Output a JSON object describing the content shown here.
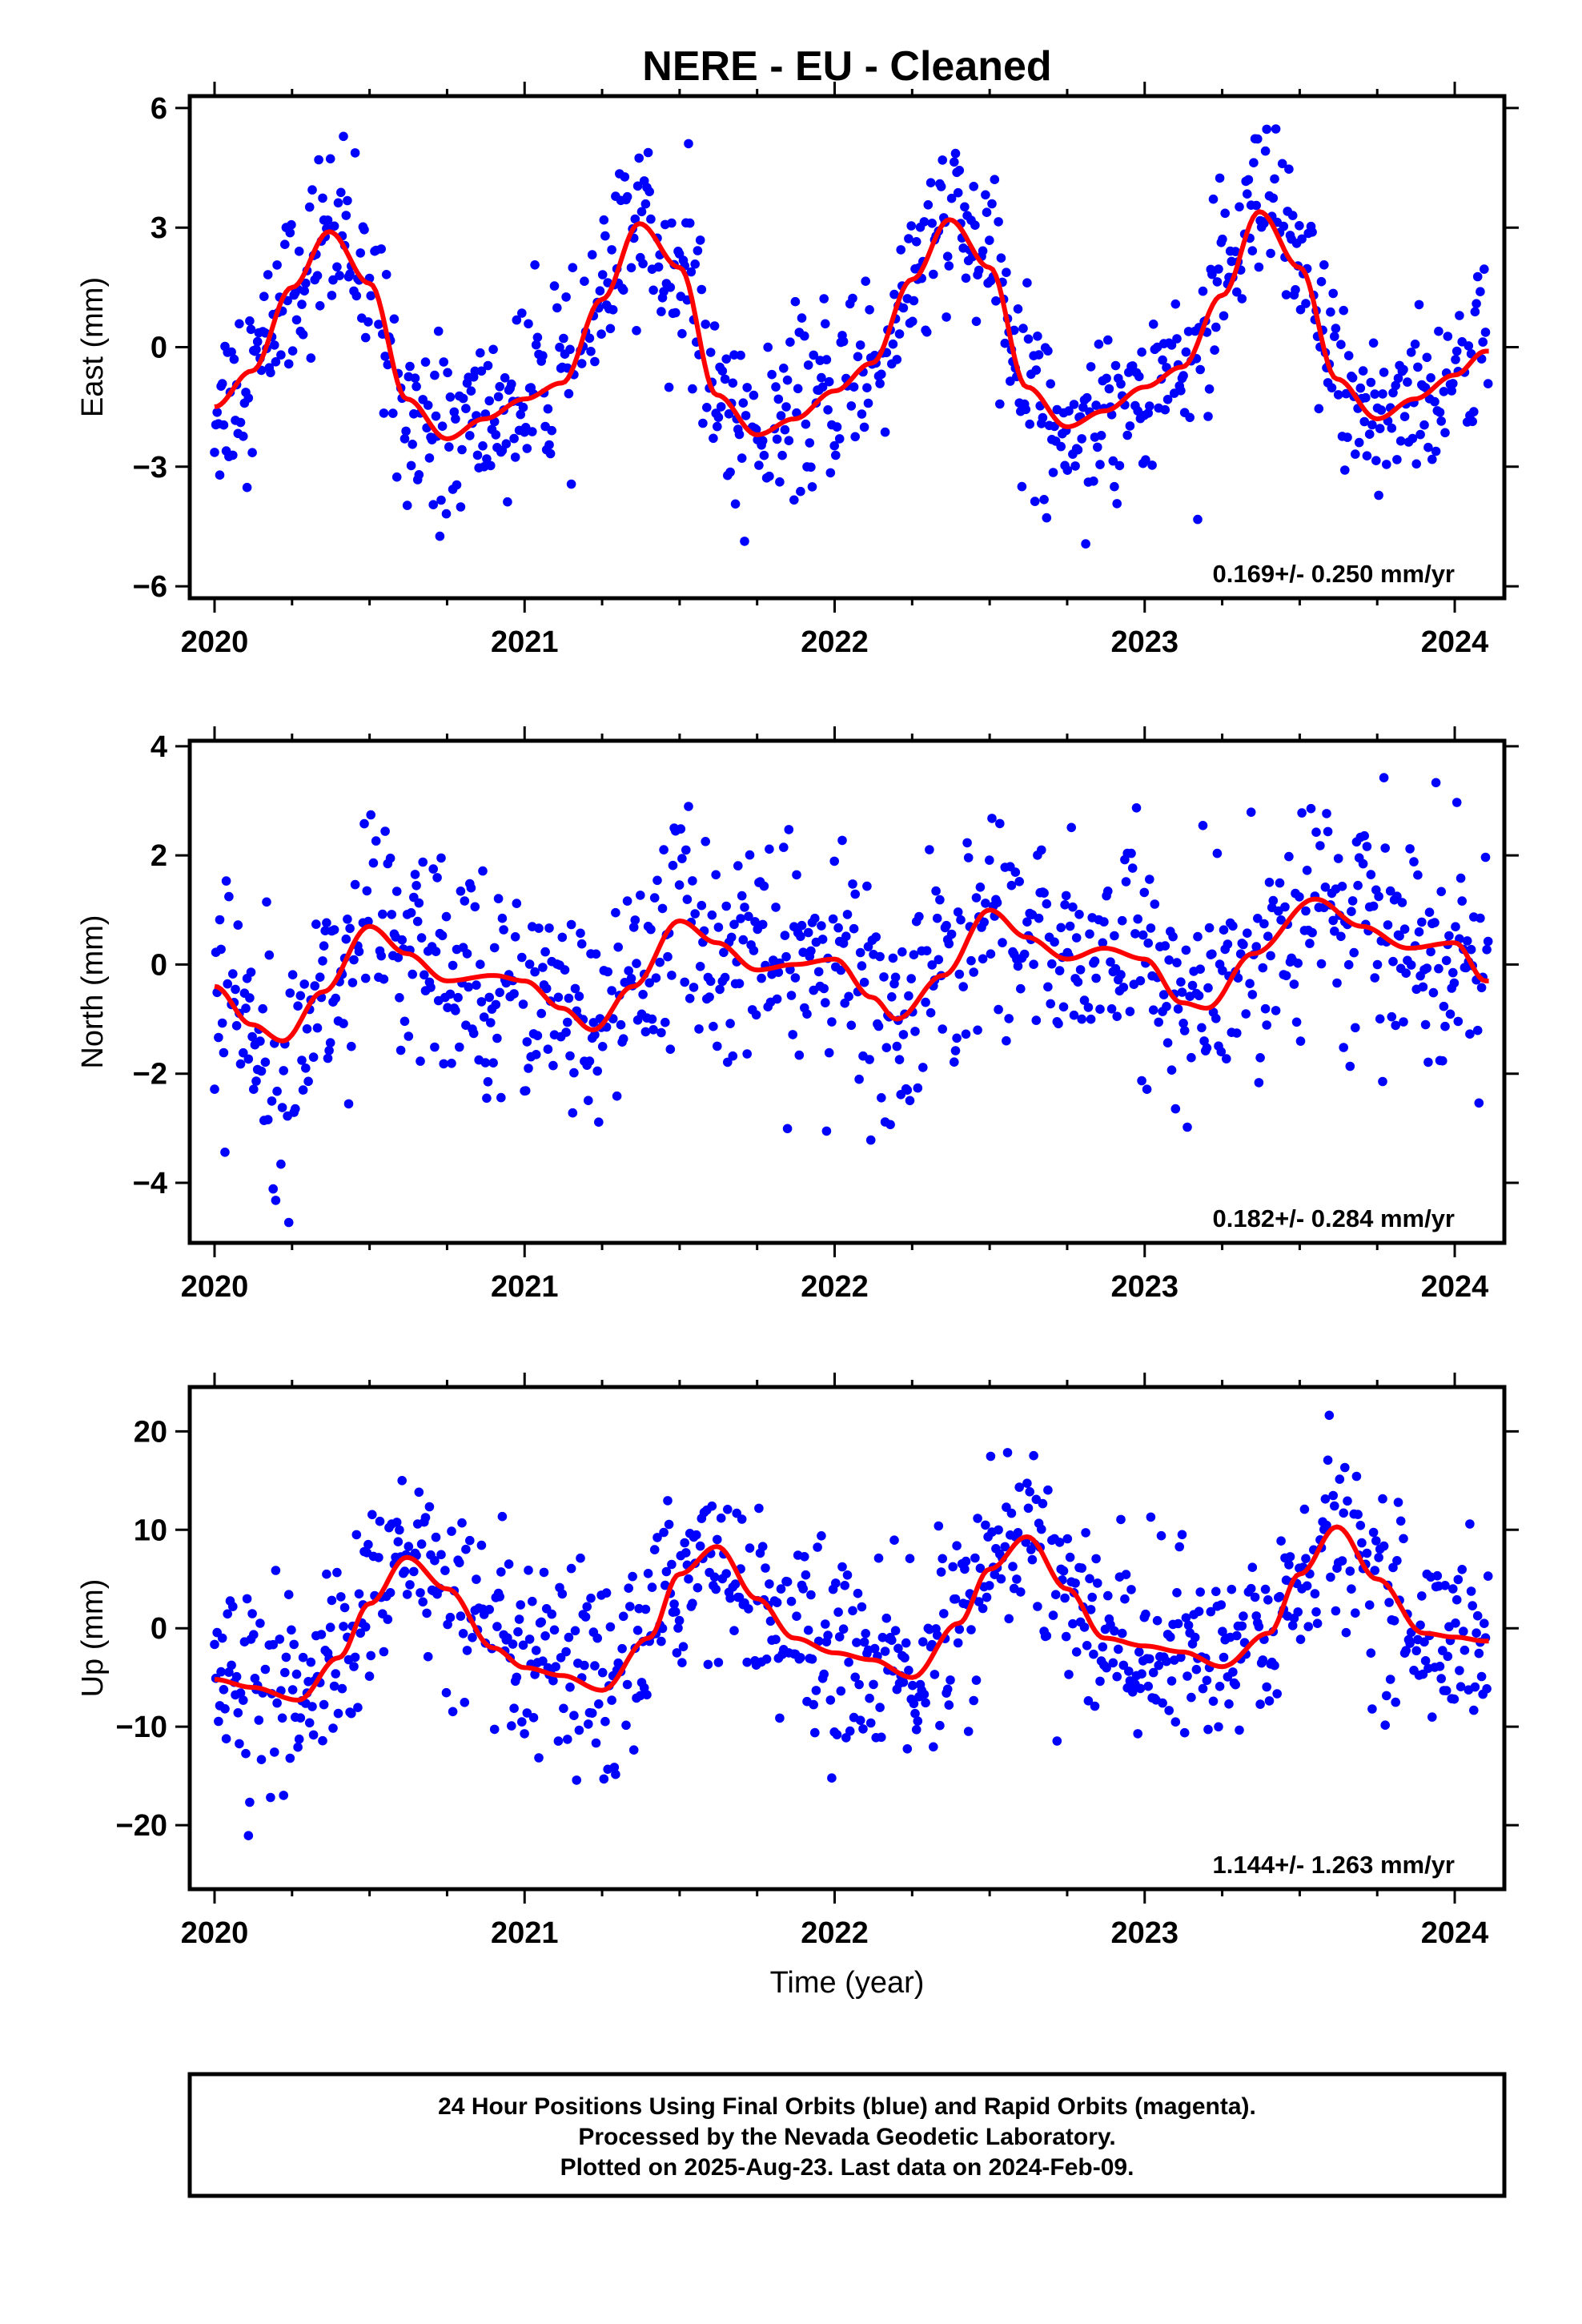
{
  "title": "NERE  - EU - Cleaned",
  "xlabel": "Time (year)",
  "footer": {
    "line1": "24 Hour Positions Using Final Orbits (blue) and Rapid Orbits (magenta).",
    "line2": "Processed by the Nevada Geodetic Laboratory.",
    "line3": "Plotted on 2025-Aug-23. Last data on 2024-Feb-09."
  },
  "colors": {
    "points": "#0000ff",
    "fit": "#ff0000",
    "frame": "#000000"
  },
  "chart_data": [
    {
      "type": "scatter",
      "ylabel": "East (mm)",
      "rate": "0.169+/- 0.250 mm/yr",
      "xlim": [
        2019.92,
        2024.16
      ],
      "ylim": [
        -6.3,
        6.3
      ],
      "xticks": [
        2020,
        2021,
        2022,
        2023,
        2024
      ],
      "yticks": [
        -6,
        -3,
        0,
        3,
        6
      ],
      "yticklabels": [
        "−6",
        "−3",
        "0",
        "3",
        "6"
      ],
      "series": [
        {
          "x": [
            2020.0,
            2020.12,
            2020.25,
            2020.37,
            2020.5,
            2020.62,
            2020.75,
            2020.87,
            2021.0,
            2021.12,
            2021.25,
            2021.37,
            2021.5,
            2021.62,
            2021.75,
            2021.87,
            2022.0,
            2022.12,
            2022.25,
            2022.37,
            2022.5,
            2022.62,
            2022.75,
            2022.87,
            2023.0,
            2023.12,
            2023.25,
            2023.37,
            2023.5,
            2023.62,
            2023.75,
            2023.87,
            2024.0,
            2024.1
          ],
          "y": [
            -1.5,
            -0.6,
            1.5,
            2.9,
            1.6,
            -1.3,
            -2.3,
            -1.8,
            -1.3,
            -0.9,
            1.2,
            3.1,
            2.0,
            -1.2,
            -2.2,
            -1.8,
            -1.1,
            -0.4,
            1.7,
            3.2,
            2.0,
            -1.0,
            -2.0,
            -1.6,
            -1.0,
            -0.5,
            1.3,
            3.4,
            2.0,
            -0.8,
            -1.8,
            -1.3,
            -0.7,
            -0.1
          ]
        }
      ]
    },
    {
      "type": "scatter",
      "ylabel": "North (mm)",
      "rate": "0.182+/- 0.284 mm/yr",
      "xlim": [
        2019.92,
        2024.16
      ],
      "ylim": [
        -5.1,
        4.1
      ],
      "xticks": [
        2020,
        2021,
        2022,
        2023,
        2024
      ],
      "yticks": [
        -4,
        -2,
        0,
        2,
        4
      ],
      "yticklabels": [
        "−4",
        "−2",
        "0",
        "2",
        "4"
      ],
      "series": [
        {
          "x": [
            2020.0,
            2020.12,
            2020.22,
            2020.35,
            2020.5,
            2020.62,
            2020.75,
            2020.9,
            2021.0,
            2021.12,
            2021.22,
            2021.35,
            2021.5,
            2021.62,
            2021.75,
            2021.87,
            2022.0,
            2022.12,
            2022.2,
            2022.35,
            2022.5,
            2022.62,
            2022.75,
            2022.87,
            2023.0,
            2023.12,
            2023.2,
            2023.35,
            2023.55,
            2023.7,
            2023.85,
            2024.0,
            2024.1
          ],
          "y": [
            -0.4,
            -1.1,
            -1.4,
            -0.5,
            0.7,
            0.2,
            -0.3,
            -0.2,
            -0.3,
            -0.8,
            -1.2,
            -0.4,
            0.8,
            0.4,
            -0.1,
            0.0,
            0.1,
            -0.6,
            -1.0,
            -0.2,
            1.0,
            0.5,
            0.1,
            0.3,
            0.1,
            -0.7,
            -0.8,
            0.2,
            1.2,
            0.7,
            0.3,
            0.4,
            -0.3
          ]
        }
      ]
    },
    {
      "type": "scatter",
      "ylabel": "Up (mm)",
      "rate": "1.144+/- 1.263 mm/yr",
      "xlim": [
        2019.92,
        2024.16
      ],
      "ylim": [
        -26.5,
        24.5
      ],
      "xticks": [
        2020,
        2021,
        2022,
        2023,
        2024
      ],
      "yticks": [
        -20,
        -10,
        0,
        10,
        20
      ],
      "yticklabels": [
        "−20",
        "−10",
        "0",
        "10",
        "20"
      ],
      "series": [
        {
          "x": [
            2020.0,
            2020.12,
            2020.27,
            2020.4,
            2020.5,
            2020.62,
            2020.75,
            2020.9,
            2021.0,
            2021.12,
            2021.25,
            2021.4,
            2021.5,
            2021.62,
            2021.75,
            2021.87,
            2022.0,
            2022.12,
            2022.25,
            2022.4,
            2022.5,
            2022.62,
            2022.75,
            2022.87,
            2023.0,
            2023.12,
            2023.25,
            2023.4,
            2023.5,
            2023.62,
            2023.75,
            2023.9,
            2024.0,
            2024.1
          ],
          "y": [
            -5.2,
            -6.0,
            -7.3,
            -3.0,
            2.5,
            7.2,
            4.0,
            -2.0,
            -4.0,
            -4.8,
            -6.3,
            -1.0,
            5.5,
            8.3,
            3.0,
            -1.0,
            -2.5,
            -3.2,
            -5.0,
            0.5,
            6.0,
            9.3,
            4.0,
            -1.0,
            -1.8,
            -2.4,
            -3.9,
            -0.5,
            5.5,
            10.3,
            5.0,
            -0.5,
            -0.9,
            -1.3
          ]
        }
      ]
    }
  ]
}
